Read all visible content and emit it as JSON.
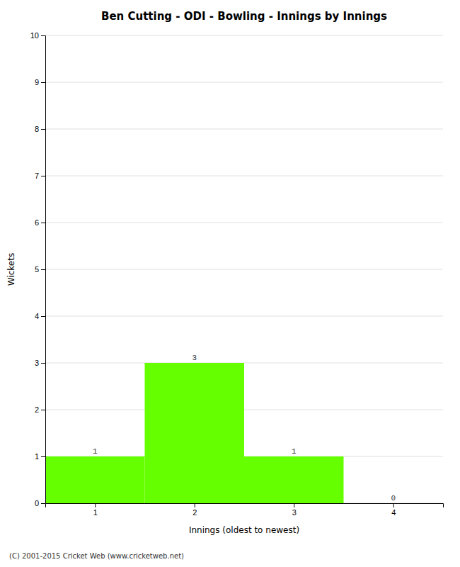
{
  "chart_data": {
    "type": "bar",
    "title": "Ben Cutting - ODI - Bowling - Innings by Innings",
    "xlabel": "Innings (oldest to newest)",
    "ylabel": "Wickets",
    "x": [
      1,
      2,
      3,
      4
    ],
    "values": [
      1,
      3,
      1,
      0
    ],
    "color": "#66ff00",
    "xlim": [
      0.5,
      4.5
    ],
    "xticks": [
      1,
      2,
      3,
      4
    ],
    "ylim": [
      0,
      10
    ],
    "yticks": [
      0,
      1,
      2,
      3,
      4,
      5,
      6,
      7,
      8,
      9,
      10
    ],
    "grid": true,
    "data_labels": true,
    "footer": "(C) 2001-2015 Cricket Web (www.cricketweb.net)"
  }
}
